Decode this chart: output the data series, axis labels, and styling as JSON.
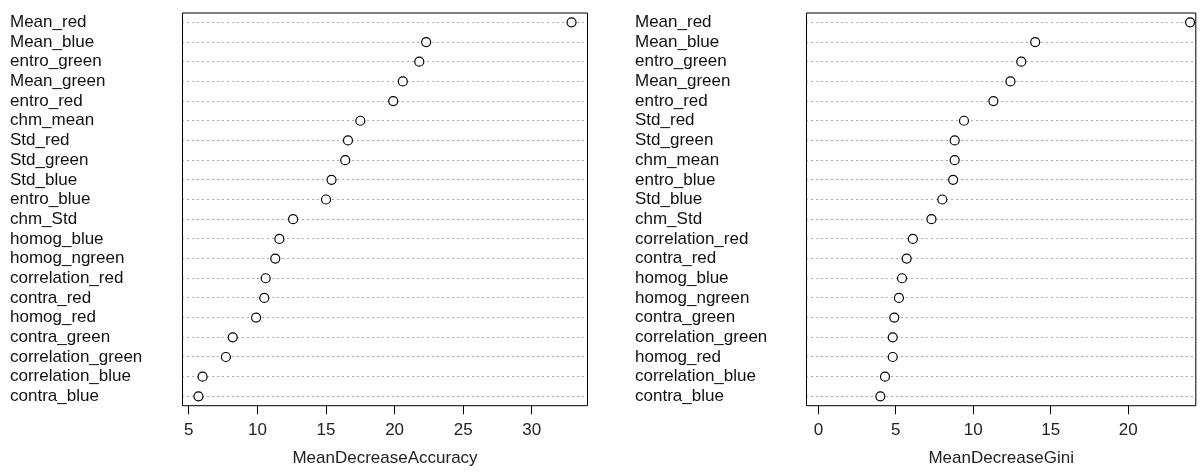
{
  "chart_data": [
    {
      "type": "scatter",
      "orientation": "horizontal",
      "categories": [
        "Mean_red",
        "Mean_blue",
        "entro_green",
        "Mean_green",
        "entro_red",
        "chm_mean",
        "Std_red",
        "Std_green",
        "Std_blue",
        "entro_blue",
        "chm_Std",
        "homog_blue",
        "homog_ngreen",
        "correlation_red",
        "contra_red",
        "homog_red",
        "contra_green",
        "correlation_green",
        "correlation_blue",
        "contra_blue"
      ],
      "values": [
        32.9,
        22.3,
        21.8,
        20.6,
        19.9,
        17.5,
        16.6,
        16.4,
        15.4,
        15.0,
        12.6,
        11.6,
        11.3,
        10.6,
        10.5,
        9.9,
        8.2,
        7.7,
        6.0,
        5.7
      ],
      "color": "#000000",
      "marker": "circle",
      "grid": "y",
      "xlabel": "MeanDecreaseAccuracy",
      "xlim": [
        4.5,
        34.1
      ],
      "xticks": [
        5,
        10,
        15,
        20,
        25,
        30
      ]
    },
    {
      "type": "scatter",
      "orientation": "horizontal",
      "categories": [
        "Mean_red",
        "Mean_blue",
        "entro_green",
        "Mean_green",
        "entro_red",
        "Std_red",
        "Std_green",
        "chm_mean",
        "entro_blue",
        "Std_blue",
        "chm_Std",
        "correlation_red",
        "contra_red",
        "homog_blue",
        "homog_ngreen",
        "contra_green",
        "correlation_green",
        "homog_red",
        "correlation_blue",
        "contra_blue"
      ],
      "values": [
        24.0,
        14.0,
        13.1,
        12.4,
        11.3,
        9.4,
        8.8,
        8.8,
        8.7,
        8.0,
        7.3,
        6.1,
        5.7,
        5.4,
        5.2,
        4.9,
        4.8,
        4.8,
        4.3,
        4.0
      ],
      "color": "#000000",
      "marker": "circle",
      "grid": "y",
      "xlabel": "MeanDecreaseGini",
      "xlim": [
        -0.8,
        24.4
      ],
      "xticks": [
        0,
        5,
        10,
        15,
        20
      ]
    }
  ]
}
